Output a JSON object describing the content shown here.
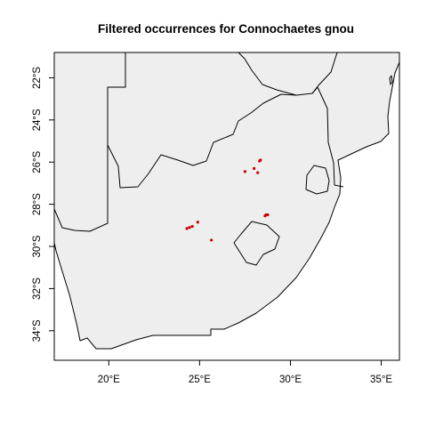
{
  "chart_data": {
    "type": "scatter",
    "title": "Filtered occurrences for Connochaetes gnou",
    "xlabel": "",
    "ylabel": "",
    "xlim": [
      17.0,
      36.0
    ],
    "ylim": [
      -35.4,
      -20.8
    ],
    "x_ticks": [
      {
        "value": 20,
        "label": "20°E"
      },
      {
        "value": 25,
        "label": "25°E"
      },
      {
        "value": 30,
        "label": "30°E"
      },
      {
        "value": 35,
        "label": "35°E"
      }
    ],
    "y_ticks": [
      {
        "value": -22,
        "label": "22°S"
      },
      {
        "value": -24,
        "label": "24°S"
      },
      {
        "value": -26,
        "label": "26°S"
      },
      {
        "value": -28,
        "label": "28°S"
      },
      {
        "value": -30,
        "label": "30°S"
      },
      {
        "value": -32,
        "label": "32°S"
      },
      {
        "value": -34,
        "label": "34°S"
      }
    ],
    "series": [
      {
        "color": "#cc0000",
        "points": [
          {
            "x": 28.35,
            "y": -25.9
          },
          {
            "x": 28.3,
            "y": -25.95
          },
          {
            "x": 27.5,
            "y": -26.45
          },
          {
            "x": 28.0,
            "y": -26.3
          },
          {
            "x": 28.2,
            "y": -26.5
          },
          {
            "x": 28.65,
            "y": -28.5
          },
          {
            "x": 28.75,
            "y": -28.5
          },
          {
            "x": 28.6,
            "y": -28.55
          },
          {
            "x": 24.9,
            "y": -28.85
          },
          {
            "x": 24.6,
            "y": -29.05
          },
          {
            "x": 24.45,
            "y": -29.1
          },
          {
            "x": 24.3,
            "y": -29.15
          },
          {
            "x": 25.65,
            "y": -29.7
          }
        ]
      }
    ],
    "grid": false,
    "legend": "none"
  }
}
